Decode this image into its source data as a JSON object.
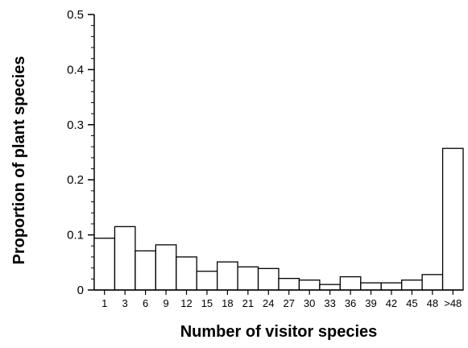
{
  "chart_data": {
    "type": "bar",
    "title": "",
    "xlabel": "Number of visitor species",
    "ylabel": "Proportion of plant species",
    "ylim": [
      0,
      0.5
    ],
    "yticks": [
      "0",
      "0.1",
      "0.2",
      "0.3",
      "0.4",
      "0.5"
    ],
    "categories": [
      "1",
      "3",
      "6",
      "9",
      "12",
      "15",
      "18",
      "21",
      "24",
      "27",
      "30",
      "33",
      "36",
      "39",
      "42",
      "45",
      "48",
      ">48"
    ],
    "values": [
      0.094,
      0.115,
      0.071,
      0.082,
      0.06,
      0.034,
      0.051,
      0.042,
      0.039,
      0.021,
      0.018,
      0.01,
      0.024,
      0.013,
      0.013,
      0.018,
      0.028,
      0.257
    ],
    "grid": false,
    "legend": "none"
  }
}
